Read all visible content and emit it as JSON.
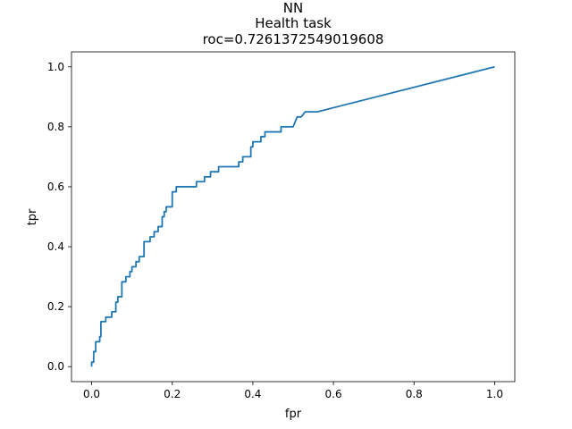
{
  "chart_data": {
    "type": "line",
    "title_lines": [
      "NN",
      "Health task",
      "roc=0.7261372549019608"
    ],
    "xlabel": "fpr",
    "ylabel": "tpr",
    "xlim": [
      -0.05,
      1.05
    ],
    "ylim": [
      -0.05,
      1.05
    ],
    "xticks": [
      0.0,
      0.2,
      0.4,
      0.6,
      0.8,
      1.0
    ],
    "yticks": [
      0.0,
      0.2,
      0.4,
      0.6,
      0.8,
      1.0
    ],
    "xtick_labels": [
      "0.0",
      "0.2",
      "0.4",
      "0.6",
      "0.8",
      "1.0"
    ],
    "ytick_labels": [
      "0.0",
      "0.2",
      "0.4",
      "0.6",
      "0.8",
      "1.0"
    ],
    "grid": false,
    "series": [
      {
        "color": "#1f77b4",
        "x": [
          0.0,
          0.0,
          0.005,
          0.005,
          0.01,
          0.01,
          0.02,
          0.02,
          0.023,
          0.023,
          0.035,
          0.035,
          0.05,
          0.05,
          0.06,
          0.06,
          0.065,
          0.065,
          0.075,
          0.075,
          0.085,
          0.085,
          0.095,
          0.095,
          0.1,
          0.1,
          0.11,
          0.11,
          0.118,
          0.118,
          0.13,
          0.13,
          0.145,
          0.145,
          0.155,
          0.155,
          0.165,
          0.165,
          0.175,
          0.175,
          0.18,
          0.18,
          0.185,
          0.185,
          0.2,
          0.2,
          0.21,
          0.21,
          0.26,
          0.26,
          0.28,
          0.28,
          0.295,
          0.295,
          0.315,
          0.315,
          0.365,
          0.365,
          0.375,
          0.375,
          0.395,
          0.395,
          0.4,
          0.4,
          0.42,
          0.42,
          0.43,
          0.43,
          0.47,
          0.47,
          0.5,
          0.51,
          0.52,
          0.53,
          0.56,
          1.0
        ],
        "y": [
          0.0,
          0.015,
          0.015,
          0.05,
          0.05,
          0.083,
          0.083,
          0.1,
          0.1,
          0.15,
          0.15,
          0.165,
          0.165,
          0.183,
          0.183,
          0.215,
          0.215,
          0.233,
          0.233,
          0.283,
          0.283,
          0.3,
          0.3,
          0.317,
          0.317,
          0.333,
          0.333,
          0.35,
          0.35,
          0.367,
          0.367,
          0.417,
          0.417,
          0.433,
          0.433,
          0.45,
          0.45,
          0.467,
          0.467,
          0.5,
          0.5,
          0.517,
          0.517,
          0.533,
          0.533,
          0.583,
          0.583,
          0.6,
          0.6,
          0.617,
          0.617,
          0.633,
          0.633,
          0.65,
          0.65,
          0.667,
          0.667,
          0.683,
          0.683,
          0.7,
          0.7,
          0.733,
          0.733,
          0.75,
          0.75,
          0.767,
          0.767,
          0.783,
          0.783,
          0.8,
          0.8,
          0.833,
          0.833,
          0.85,
          0.85,
          1.0
        ]
      }
    ]
  }
}
